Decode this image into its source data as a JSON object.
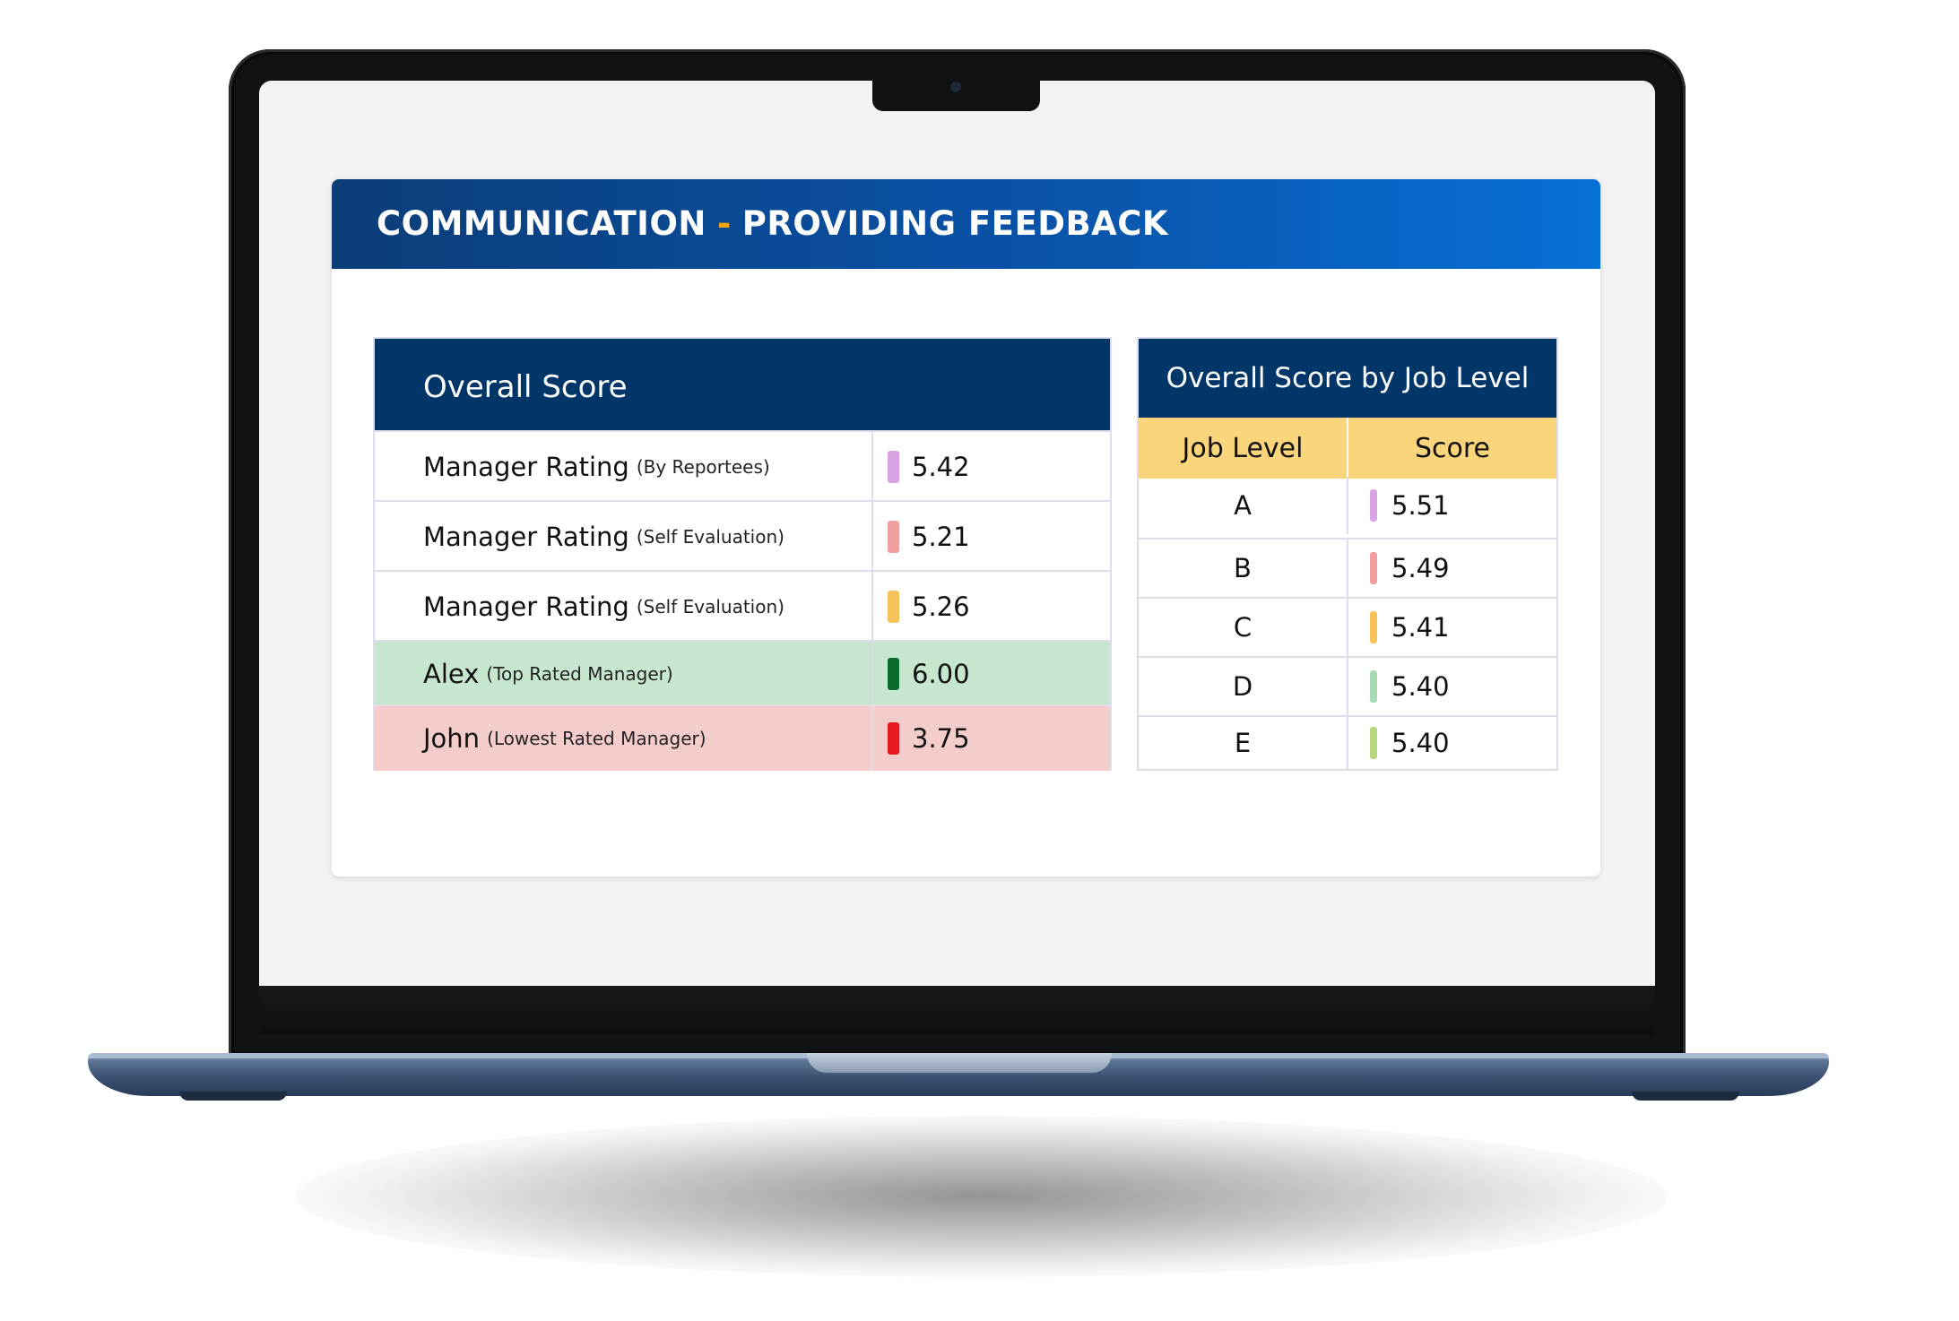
{
  "header": {
    "title_left": "COMMUNICATION",
    "title_separator": "-",
    "title_right": "PROVIDING FEEDBACK"
  },
  "overall_score": {
    "heading": "Overall Score",
    "rows": [
      {
        "label": "Manager Rating",
        "sublabel": "(By Reportees)",
        "score": "5.42",
        "color": "#d9a3e3",
        "bg": "#ffffff"
      },
      {
        "label": "Manager Rating",
        "sublabel": "(Self Evaluation)",
        "score": "5.21",
        "color": "#f0a0a0",
        "bg": "#ffffff"
      },
      {
        "label": "Manager Rating",
        "sublabel": "(Self Evaluation)",
        "score": "5.26",
        "color": "#f7c15c",
        "bg": "#ffffff"
      },
      {
        "label": "Alex",
        "sublabel": "(Top Rated Manager)",
        "score": "6.00",
        "color": "#0b6b2e",
        "bg": "#c6e6d0"
      },
      {
        "label": "John",
        "sublabel": "(Lowest Rated Manager)",
        "score": "3.75",
        "color": "#e5191f",
        "bg": "#f5cccc"
      }
    ]
  },
  "job_level": {
    "heading": "Overall Score by Job Level",
    "col_level": "Job Level",
    "col_score": "Score",
    "header_bg": "#fbd57c",
    "rows": [
      {
        "level": "A",
        "score": "5.51",
        "color": "#d9a3e3"
      },
      {
        "level": "B",
        "score": "5.49",
        "color": "#f0a0a0"
      },
      {
        "level": "C",
        "score": "5.41",
        "color": "#f7c15c"
      },
      {
        "level": "D",
        "score": "5.40",
        "color": "#a6dbb3"
      },
      {
        "level": "E",
        "score": "5.40",
        "color": "#b8d67a"
      }
    ]
  }
}
